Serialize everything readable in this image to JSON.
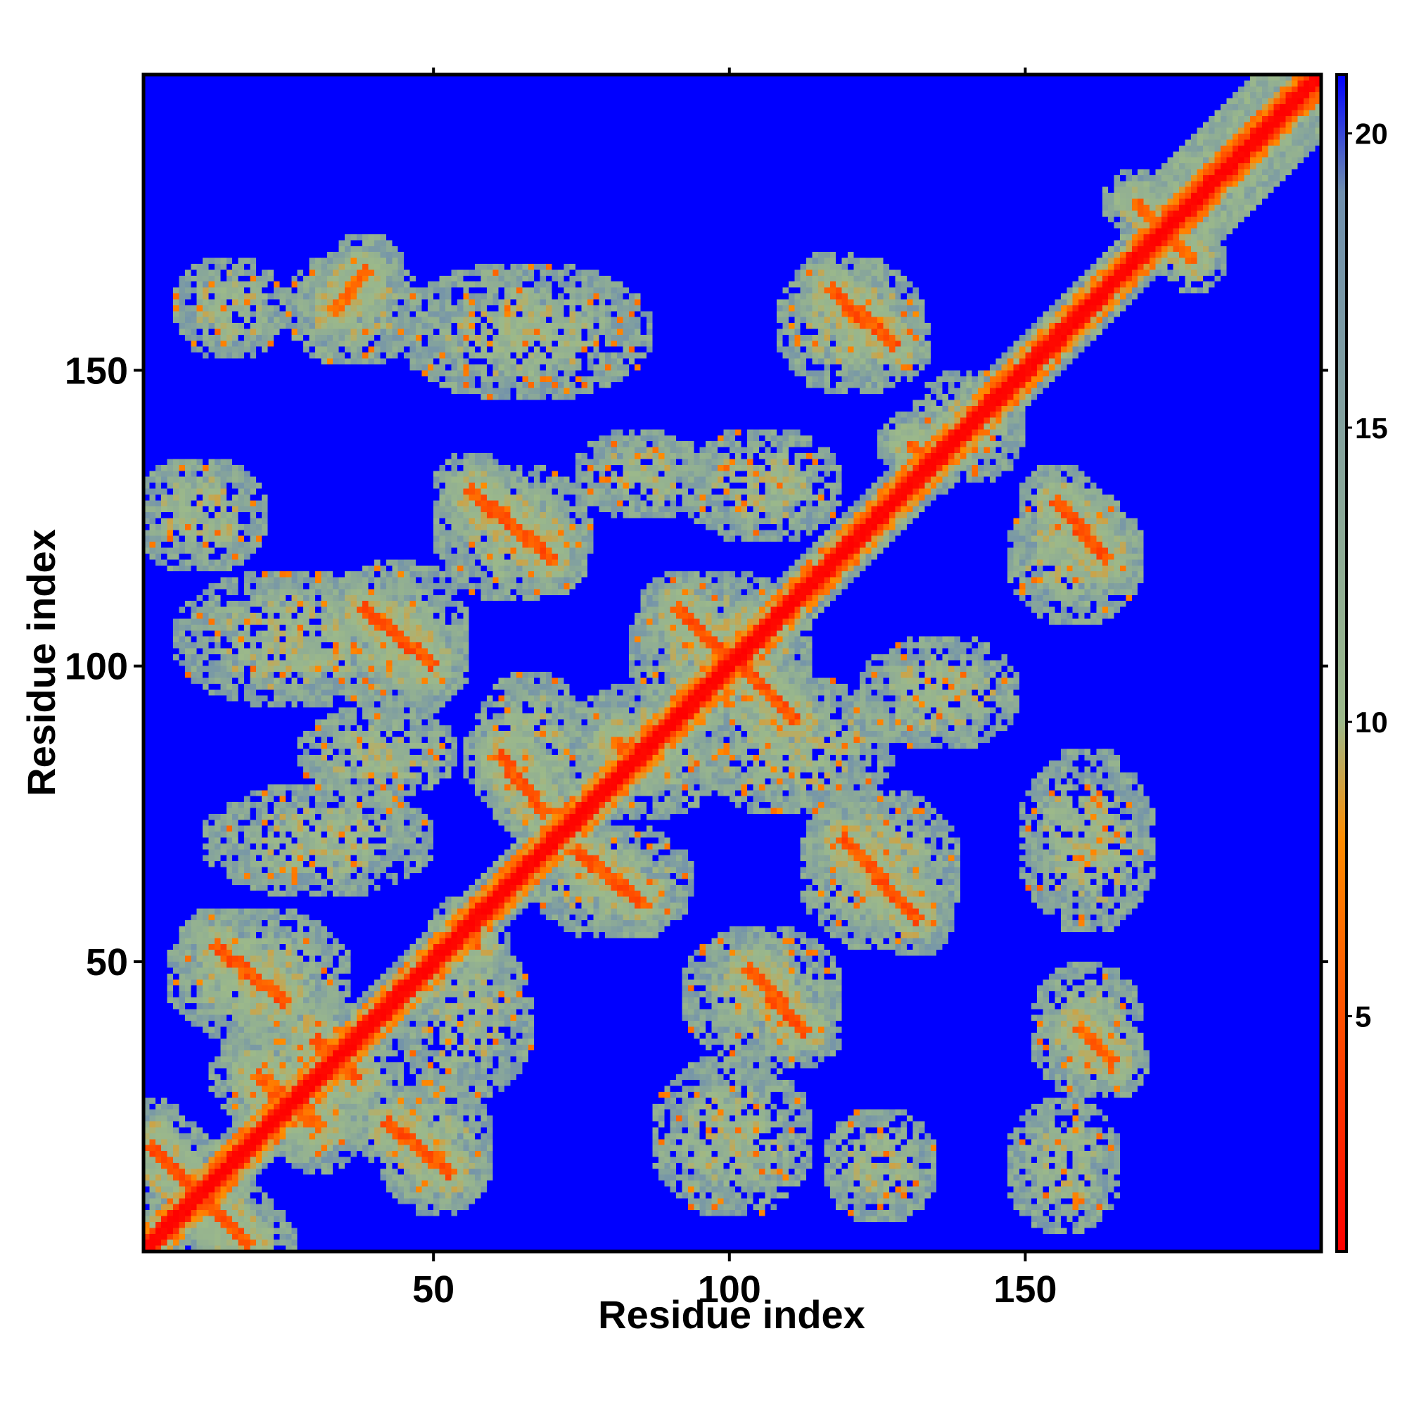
{
  "chart_data": {
    "type": "heatmap",
    "title": "",
    "xlabel": "Residue index",
    "ylabel": "Residue index",
    "xlim": [
      1,
      200
    ],
    "ylim": [
      1,
      200
    ],
    "x_ticks": [
      50,
      100,
      150
    ],
    "x_tick_labels": [
      "50",
      "100",
      "150"
    ],
    "y_ticks": [
      50,
      100,
      150
    ],
    "y_tick_labels": [
      "50",
      "100",
      "150"
    ],
    "n_residues": 199,
    "value_range": [
      1,
      21
    ],
    "colorbar": {
      "ticks": [
        5,
        10,
        15,
        20
      ],
      "tick_labels": [
        "5",
        "10",
        "15",
        "20"
      ],
      "colors": [
        "#ff0000",
        "#ff8c00",
        "#9cb98a",
        "#6f8fae",
        "#0000ff"
      ],
      "stops": [
        1,
        8,
        10,
        19,
        21
      ]
    },
    "grid": false,
    "description_of_values": "",
    "background_value": 21,
    "diagonal": [
      {
        "from": 1,
        "to": 200,
        "core_value": 1,
        "halfwidth": 2
      }
    ],
    "contact_bands": [
      {
        "x1": 2,
        "y1": 18,
        "x2": 18,
        "y2": 2,
        "value": 5,
        "width": 3
      },
      {
        "x1": 13,
        "y1": 52,
        "x2": 24,
        "y2": 43,
        "value": 5,
        "width": 2.5
      },
      {
        "x1": 20,
        "y1": 30,
        "x2": 30,
        "y2": 22,
        "value": 6,
        "width": 3
      },
      {
        "x1": 30,
        "y1": 36,
        "x2": 36,
        "y2": 30,
        "value": 5,
        "width": 3
      },
      {
        "x1": 42,
        "y1": 22,
        "x2": 52,
        "y2": 14,
        "value": 5,
        "width": 2.5
      },
      {
        "x1": 38,
        "y1": 109,
        "x2": 49,
        "y2": 100,
        "value": 5,
        "width": 2.5
      },
      {
        "x1": 56,
        "y1": 129,
        "x2": 69,
        "y2": 118,
        "value": 5,
        "width": 2.5
      },
      {
        "x1": 61,
        "y1": 84,
        "x2": 68,
        "y2": 75,
        "value": 5,
        "width": 2.5
      },
      {
        "x1": 74,
        "y1": 68,
        "x2": 84,
        "y2": 60,
        "value": 5,
        "width": 2.5
      },
      {
        "x1": 91,
        "y1": 109,
        "x2": 99,
        "y2": 101,
        "value": 5,
        "width": 2.5
      },
      {
        "x1": 102,
        "y1": 99,
        "x2": 110,
        "y2": 91,
        "value": 5,
        "width": 2.5
      },
      {
        "x1": 103,
        "y1": 48,
        "x2": 112,
        "y2": 38,
        "value": 5,
        "width": 2.5
      },
      {
        "x1": 119,
        "y1": 70,
        "x2": 131,
        "y2": 57,
        "value": 5,
        "width": 2.5
      },
      {
        "x1": 117,
        "y1": 163,
        "x2": 127,
        "y2": 154,
        "value": 5,
        "width": 2.5
      },
      {
        "x1": 155,
        "y1": 127,
        "x2": 163,
        "y2": 118,
        "value": 5,
        "width": 2.5
      },
      {
        "x1": 159,
        "y1": 38,
        "x2": 164,
        "y2": 33,
        "value": 6,
        "width": 2.5
      },
      {
        "x1": 33,
        "y1": 160,
        "x2": 38,
        "y2": 166,
        "value": 6,
        "width": 2.5
      },
      {
        "x1": 80,
        "y1": 87,
        "x2": 84,
        "y2": 83,
        "value": 6,
        "width": 2
      },
      {
        "x1": 54,
        "y1": 55,
        "x2": 57,
        "y2": 52,
        "value": 6,
        "width": 2
      },
      {
        "x1": 130,
        "y1": 137,
        "x2": 134,
        "y2": 134,
        "value": 6,
        "width": 2
      },
      {
        "x1": 168,
        "y1": 178,
        "x2": 178,
        "y2": 168,
        "value": 6,
        "width": 2
      }
    ],
    "diffuse_regions": [
      {
        "x": 15,
        "y": 160,
        "rx": 10,
        "ry": 9
      },
      {
        "x": 36,
        "y": 160,
        "rx": 12,
        "ry": 10
      },
      {
        "x": 65,
        "y": 156,
        "rx": 22,
        "ry": 12
      },
      {
        "x": 120,
        "y": 157,
        "rx": 13,
        "ry": 12
      },
      {
        "x": 10,
        "y": 125,
        "rx": 12,
        "ry": 10
      },
      {
        "x": 25,
        "y": 104,
        "rx": 20,
        "ry": 12
      },
      {
        "x": 44,
        "y": 104,
        "rx": 12,
        "ry": 14
      },
      {
        "x": 63,
        "y": 122,
        "rx": 14,
        "ry": 12
      },
      {
        "x": 85,
        "y": 132,
        "rx": 12,
        "ry": 8
      },
      {
        "x": 105,
        "y": 130,
        "rx": 14,
        "ry": 10
      },
      {
        "x": 98,
        "y": 102,
        "rx": 16,
        "ry": 14
      },
      {
        "x": 66,
        "y": 85,
        "rx": 10,
        "ry": 14
      },
      {
        "x": 85,
        "y": 85,
        "rx": 14,
        "ry": 12
      },
      {
        "x": 110,
        "y": 86,
        "rx": 18,
        "ry": 12
      },
      {
        "x": 135,
        "y": 95,
        "rx": 14,
        "ry": 10
      },
      {
        "x": 158,
        "y": 118,
        "rx": 12,
        "ry": 12
      },
      {
        "x": 160,
        "y": 70,
        "rx": 12,
        "ry": 16
      },
      {
        "x": 125,
        "y": 65,
        "rx": 14,
        "ry": 14
      },
      {
        "x": 80,
        "y": 63,
        "rx": 14,
        "ry": 10
      },
      {
        "x": 105,
        "y": 44,
        "rx": 14,
        "ry": 12
      },
      {
        "x": 100,
        "y": 20,
        "rx": 14,
        "ry": 14
      },
      {
        "x": 125,
        "y": 15,
        "rx": 10,
        "ry": 10
      },
      {
        "x": 160,
        "y": 38,
        "rx": 10,
        "ry": 12
      },
      {
        "x": 156,
        "y": 15,
        "rx": 10,
        "ry": 12
      },
      {
        "x": 20,
        "y": 47,
        "rx": 16,
        "ry": 12
      },
      {
        "x": 30,
        "y": 70,
        "rx": 20,
        "ry": 10
      },
      {
        "x": 55,
        "y": 40,
        "rx": 12,
        "ry": 14
      },
      {
        "x": 50,
        "y": 18,
        "rx": 10,
        "ry": 12
      },
      {
        "x": 27,
        "y": 28,
        "rx": 12,
        "ry": 12
      },
      {
        "x": 40,
        "y": 85,
        "rx": 14,
        "ry": 8
      },
      {
        "x": 140,
        "y": 140,
        "rx": 10,
        "ry": 10
      }
    ]
  }
}
